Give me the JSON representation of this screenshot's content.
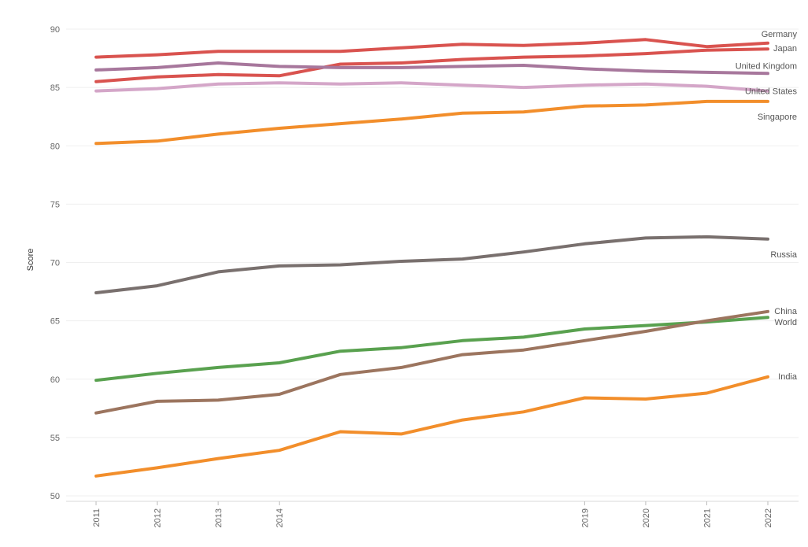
{
  "chart_data": {
    "type": "line",
    "xlabel": "",
    "ylabel": "Score",
    "ylim": [
      50,
      90
    ],
    "y_ticks": [
      50,
      55,
      60,
      65,
      70,
      75,
      80,
      85,
      90
    ],
    "x_ticks": [
      "2011",
      "2012",
      "2013",
      "2014",
      "2019",
      "2020",
      "2021",
      "2022"
    ],
    "x": [
      2011,
      2012,
      2013,
      2014,
      2015,
      2016,
      2017,
      2018,
      2019,
      2020,
      2021,
      2022
    ],
    "grid": true,
    "legend": "direct labels at line ends",
    "series": [
      {
        "name": "Germany",
        "color": "#d9534f",
        "values": [
          87.6,
          87.8,
          88.1,
          88.1,
          88.1,
          88.4,
          88.7,
          88.6,
          88.8,
          89.1,
          88.5,
          88.8
        ]
      },
      {
        "name": "Japan",
        "color": "#d9534f",
        "values": [
          85.5,
          85.9,
          86.1,
          86.0,
          87.0,
          87.1,
          87.4,
          87.6,
          87.7,
          87.9,
          88.2,
          88.3
        ]
      },
      {
        "name": "United Kingdom",
        "color": "#a7779c",
        "values": [
          86.5,
          86.7,
          87.1,
          86.8,
          86.7,
          86.7,
          86.8,
          86.9,
          86.6,
          86.4,
          86.3,
          86.2
        ]
      },
      {
        "name": "United States",
        "color": "#d4a6c8",
        "values": [
          84.7,
          84.9,
          85.3,
          85.4,
          85.3,
          85.4,
          85.2,
          85.0,
          85.2,
          85.3,
          85.1,
          84.7
        ]
      },
      {
        "name": "Singapore",
        "color": "#f28e2b",
        "values": [
          80.2,
          80.4,
          81.0,
          81.5,
          81.9,
          82.3,
          82.8,
          82.9,
          83.4,
          83.5,
          83.8,
          83.8
        ]
      },
      {
        "name": "Russia",
        "color": "#79706e",
        "values": [
          67.4,
          68.0,
          69.2,
          69.7,
          69.8,
          70.1,
          70.3,
          70.9,
          71.6,
          72.1,
          72.2,
          72.0
        ]
      },
      {
        "name": "World",
        "color": "#59a14f",
        "values": [
          59.9,
          60.5,
          61.0,
          61.4,
          62.4,
          62.7,
          63.3,
          63.6,
          64.3,
          64.6,
          64.9,
          65.3
        ]
      },
      {
        "name": "China",
        "color": "#9c755f",
        "values": [
          57.1,
          58.1,
          58.2,
          58.7,
          60.4,
          61.0,
          62.1,
          62.5,
          63.3,
          64.1,
          65.0,
          65.8
        ]
      },
      {
        "name": "India",
        "color": "#f28e2b",
        "values": [
          51.7,
          52.4,
          53.2,
          53.9,
          55.5,
          55.3,
          56.5,
          57.2,
          58.4,
          58.3,
          58.8,
          60.2
        ]
      }
    ]
  }
}
